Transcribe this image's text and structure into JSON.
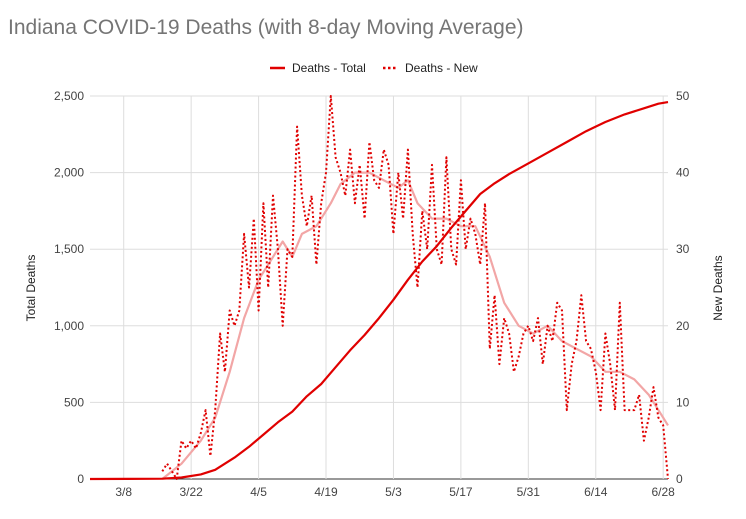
{
  "chart_data": {
    "type": "line",
    "title": "Indiana COVID-19 Deaths (with 8-day Moving Average)",
    "legend_position": "top",
    "grid": true,
    "left_axis": {
      "label": "Total Deaths",
      "range": [
        0,
        2500
      ],
      "ticks": [
        "0",
        "500",
        "1,000",
        "1,500",
        "2,000",
        "2,500"
      ]
    },
    "right_axis": {
      "label": "New Deaths",
      "range": [
        0,
        50
      ],
      "ticks": [
        "0",
        "10",
        "20",
        "30",
        "40",
        "50"
      ]
    },
    "x_tick_labels": [
      "3/8",
      "3/22",
      "4/5",
      "4/19",
      "5/3",
      "5/17",
      "5/31",
      "6/14",
      "6/28"
    ],
    "x_range": [
      "2020-03-01",
      "2020-06-29"
    ],
    "series": [
      {
        "name": "Deaths - Total",
        "axis": "left",
        "color": "#e00000",
        "style": "solid",
        "points": [
          [
            "2020-03-01",
            0
          ],
          [
            "2020-03-16",
            2
          ],
          [
            "2020-03-20",
            10
          ],
          [
            "2020-03-24",
            30
          ],
          [
            "2020-03-27",
            60
          ],
          [
            "2020-03-31",
            140
          ],
          [
            "2020-04-03",
            210
          ],
          [
            "2020-04-06",
            290
          ],
          [
            "2020-04-09",
            370
          ],
          [
            "2020-04-12",
            440
          ],
          [
            "2020-04-15",
            540
          ],
          [
            "2020-04-18",
            620
          ],
          [
            "2020-04-21",
            730
          ],
          [
            "2020-04-24",
            840
          ],
          [
            "2020-04-27",
            940
          ],
          [
            "2020-04-30",
            1050
          ],
          [
            "2020-05-03",
            1170
          ],
          [
            "2020-05-06",
            1300
          ],
          [
            "2020-05-09",
            1420
          ],
          [
            "2020-05-12",
            1520
          ],
          [
            "2020-05-15",
            1640
          ],
          [
            "2020-05-18",
            1750
          ],
          [
            "2020-05-21",
            1860
          ],
          [
            "2020-05-24",
            1930
          ],
          [
            "2020-05-27",
            1990
          ],
          [
            "2020-05-31",
            2060
          ],
          [
            "2020-06-04",
            2130
          ],
          [
            "2020-06-08",
            2200
          ],
          [
            "2020-06-12",
            2270
          ],
          [
            "2020-06-16",
            2330
          ],
          [
            "2020-06-20",
            2380
          ],
          [
            "2020-06-24",
            2420
          ],
          [
            "2020-06-27",
            2450
          ],
          [
            "2020-06-29",
            2460
          ]
        ]
      },
      {
        "name": "Deaths - New",
        "axis": "right",
        "color": "#e00000",
        "style": "dotted",
        "points": [
          [
            "2020-03-16",
            1
          ],
          [
            "2020-03-17",
            2
          ],
          [
            "2020-03-18",
            1
          ],
          [
            "2020-03-19",
            0
          ],
          [
            "2020-03-20",
            5
          ],
          [
            "2020-03-21",
            4
          ],
          [
            "2020-03-22",
            5
          ],
          [
            "2020-03-23",
            4
          ],
          [
            "2020-03-24",
            6
          ],
          [
            "2020-03-25",
            9
          ],
          [
            "2020-03-26",
            3
          ],
          [
            "2020-03-27",
            9
          ],
          [
            "2020-03-28",
            19
          ],
          [
            "2020-03-29",
            14
          ],
          [
            "2020-03-30",
            22
          ],
          [
            "2020-03-31",
            20
          ],
          [
            "2020-04-01",
            22
          ],
          [
            "2020-04-02",
            32
          ],
          [
            "2020-04-03",
            25
          ],
          [
            "2020-04-04",
            34
          ],
          [
            "2020-04-05",
            22
          ],
          [
            "2020-04-06",
            36
          ],
          [
            "2020-04-07",
            25
          ],
          [
            "2020-04-08",
            37
          ],
          [
            "2020-04-09",
            30
          ],
          [
            "2020-04-10",
            20
          ],
          [
            "2020-04-11",
            30
          ],
          [
            "2020-04-12",
            29
          ],
          [
            "2020-04-13",
            46
          ],
          [
            "2020-04-14",
            37
          ],
          [
            "2020-04-15",
            33
          ],
          [
            "2020-04-16",
            37
          ],
          [
            "2020-04-17",
            28
          ],
          [
            "2020-04-18",
            36
          ],
          [
            "2020-04-19",
            40
          ],
          [
            "2020-04-20",
            50
          ],
          [
            "2020-04-21",
            42
          ],
          [
            "2020-04-22",
            40
          ],
          [
            "2020-04-23",
            37
          ],
          [
            "2020-04-24",
            43
          ],
          [
            "2020-04-25",
            36
          ],
          [
            "2020-04-26",
            41
          ],
          [
            "2020-04-27",
            34
          ],
          [
            "2020-04-28",
            44
          ],
          [
            "2020-04-29",
            39
          ],
          [
            "2020-04-30",
            38
          ],
          [
            "2020-05-01",
            43
          ],
          [
            "2020-05-02",
            41
          ],
          [
            "2020-05-03",
            32
          ],
          [
            "2020-05-04",
            40
          ],
          [
            "2020-05-05",
            34
          ],
          [
            "2020-05-06",
            43
          ],
          [
            "2020-05-07",
            32
          ],
          [
            "2020-05-08",
            25
          ],
          [
            "2020-05-09",
            35
          ],
          [
            "2020-05-10",
            30
          ],
          [
            "2020-05-11",
            41
          ],
          [
            "2020-05-12",
            30
          ],
          [
            "2020-05-13",
            28
          ],
          [
            "2020-05-14",
            42
          ],
          [
            "2020-05-15",
            30
          ],
          [
            "2020-05-16",
            28
          ],
          [
            "2020-05-17",
            39
          ],
          [
            "2020-05-18",
            30
          ],
          [
            "2020-05-19",
            34
          ],
          [
            "2020-05-20",
            32
          ],
          [
            "2020-05-21",
            28
          ],
          [
            "2020-05-22",
            36
          ],
          [
            "2020-05-23",
            17
          ],
          [
            "2020-05-24",
            24
          ],
          [
            "2020-05-25",
            15
          ],
          [
            "2020-05-26",
            21
          ],
          [
            "2020-05-27",
            19
          ],
          [
            "2020-05-28",
            14
          ],
          [
            "2020-05-29",
            16
          ],
          [
            "2020-05-30",
            19
          ],
          [
            "2020-05-31",
            20
          ],
          [
            "2020-06-01",
            18
          ],
          [
            "2020-06-02",
            21
          ],
          [
            "2020-06-03",
            15
          ],
          [
            "2020-06-04",
            20
          ],
          [
            "2020-06-05",
            18
          ],
          [
            "2020-06-06",
            23
          ],
          [
            "2020-06-07",
            22
          ],
          [
            "2020-06-08",
            9
          ],
          [
            "2020-06-09",
            15
          ],
          [
            "2020-06-10",
            18
          ],
          [
            "2020-06-11",
            24
          ],
          [
            "2020-06-12",
            18
          ],
          [
            "2020-06-13",
            17
          ],
          [
            "2020-06-14",
            14
          ],
          [
            "2020-06-15",
            9
          ],
          [
            "2020-06-16",
            19
          ],
          [
            "2020-06-17",
            15
          ],
          [
            "2020-06-18",
            9
          ],
          [
            "2020-06-19",
            23
          ],
          [
            "2020-06-20",
            9
          ],
          [
            "2020-06-21",
            9
          ],
          [
            "2020-06-22",
            9
          ],
          [
            "2020-06-23",
            11
          ],
          [
            "2020-06-24",
            5
          ],
          [
            "2020-06-25",
            8
          ],
          [
            "2020-06-26",
            12
          ],
          [
            "2020-06-27",
            8
          ],
          [
            "2020-06-28",
            7
          ],
          [
            "2020-06-29",
            0
          ]
        ]
      },
      {
        "axis": "right",
        "color": "#f2a6a6",
        "style": "solid",
        "points": [
          [
            "2020-03-16",
            0
          ],
          [
            "2020-03-20",
            2
          ],
          [
            "2020-03-24",
            5
          ],
          [
            "2020-03-27",
            8
          ],
          [
            "2020-03-30",
            14
          ],
          [
            "2020-04-02",
            21
          ],
          [
            "2020-04-05",
            26
          ],
          [
            "2020-04-08",
            29
          ],
          [
            "2020-04-10",
            31
          ],
          [
            "2020-04-12",
            29
          ],
          [
            "2020-04-14",
            32
          ],
          [
            "2020-04-17",
            33
          ],
          [
            "2020-04-20",
            36
          ],
          [
            "2020-04-22",
            38.5
          ],
          [
            "2020-04-25",
            40
          ],
          [
            "2020-04-28",
            40
          ],
          [
            "2020-05-01",
            39
          ],
          [
            "2020-05-04",
            38
          ],
          [
            "2020-05-06",
            39
          ],
          [
            "2020-05-08",
            36
          ],
          [
            "2020-05-11",
            34
          ],
          [
            "2020-05-14",
            34
          ],
          [
            "2020-05-17",
            33
          ],
          [
            "2020-05-20",
            33
          ],
          [
            "2020-05-23",
            29
          ],
          [
            "2020-05-26",
            23
          ],
          [
            "2020-05-29",
            20
          ],
          [
            "2020-06-01",
            19
          ],
          [
            "2020-06-04",
            20
          ],
          [
            "2020-06-07",
            18
          ],
          [
            "2020-06-10",
            17
          ],
          [
            "2020-06-13",
            16
          ],
          [
            "2020-06-16",
            14
          ],
          [
            "2020-06-19",
            14
          ],
          [
            "2020-06-22",
            13
          ],
          [
            "2020-06-25",
            11
          ],
          [
            "2020-06-28",
            8
          ],
          [
            "2020-06-29",
            7
          ]
        ]
      }
    ]
  }
}
